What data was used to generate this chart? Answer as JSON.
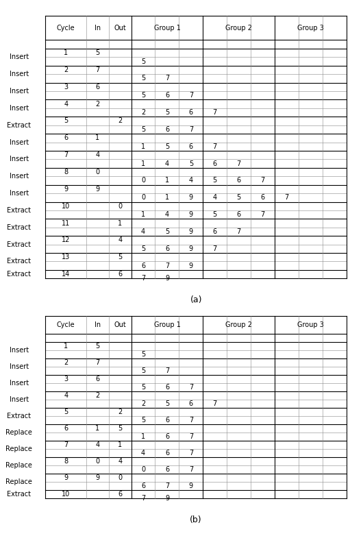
{
  "table_a": {
    "title": "(a)",
    "left_labels": [
      "Insert",
      "Insert",
      "Insert",
      "Insert",
      "Extract",
      "Insert",
      "Insert",
      "Insert",
      "Insert",
      "Extract",
      "Extract",
      "Extract",
      "Extract",
      "Extract"
    ],
    "cycle": [
      "1",
      "2",
      "3",
      "4",
      "5",
      "6",
      "7",
      "8",
      "9",
      "10",
      "11",
      "12",
      "13",
      "14"
    ],
    "in_val": [
      "5",
      "7",
      "6",
      "2",
      "",
      "1",
      "4",
      "0",
      "9",
      "",
      "",
      "",
      "",
      ""
    ],
    "out_val": [
      "",
      "",
      "",
      "",
      "2",
      "",
      "",
      "",
      "",
      "0",
      "1",
      "4",
      "5",
      "6"
    ],
    "state_rows": [
      [
        "5",
        "",
        "",
        "",
        "",
        "",
        "",
        "",
        ""
      ],
      [
        "5",
        "7",
        "",
        "",
        "",
        "",
        "",
        "",
        ""
      ],
      [
        "5",
        "6",
        "7",
        "",
        "",
        "",
        "",
        "",
        ""
      ],
      [
        "2",
        "5",
        "6",
        "7",
        "",
        "",
        "",
        "",
        ""
      ],
      [
        "5",
        "6",
        "7",
        "",
        "",
        "",
        "",
        "",
        ""
      ],
      [
        "1",
        "5",
        "6",
        "7",
        "",
        "",
        "",
        "",
        ""
      ],
      [
        "1",
        "4",
        "5",
        "6",
        "7",
        "",
        "",
        "",
        ""
      ],
      [
        "0",
        "1",
        "4",
        "5",
        "6",
        "7",
        "",
        "",
        ""
      ],
      [
        "0",
        "1",
        "9",
        "4",
        "5",
        "6",
        "7",
        "",
        ""
      ],
      [
        "1",
        "4",
        "9",
        "5",
        "6",
        "7",
        "",
        "",
        ""
      ],
      [
        "4",
        "5",
        "9",
        "6",
        "7",
        "",
        "",
        "",
        ""
      ],
      [
        "5",
        "6",
        "9",
        "7",
        "",
        "",
        "",
        "",
        ""
      ],
      [
        "6",
        "7",
        "9",
        "",
        "",
        "",
        "",
        "",
        ""
      ],
      [
        "7",
        "9",
        "",
        "",
        "",
        "",
        "",
        "",
        ""
      ]
    ]
  },
  "table_b": {
    "title": "(b)",
    "left_labels": [
      "Insert",
      "Insert",
      "Insert",
      "Insert",
      "Extract",
      "Replace",
      "Replace",
      "Replace",
      "Replace",
      "Extract"
    ],
    "cycle": [
      "1",
      "2",
      "3",
      "4",
      "5",
      "6",
      "7",
      "8",
      "9",
      "10"
    ],
    "in_val": [
      "5",
      "7",
      "6",
      "2",
      "",
      "1",
      "4",
      "0",
      "9",
      ""
    ],
    "out_val": [
      "",
      "",
      "",
      "",
      "2",
      "5",
      "1",
      "4",
      "0",
      "6"
    ],
    "state_rows": [
      [
        "5",
        "",
        "",
        "",
        "",
        "",
        "",
        "",
        ""
      ],
      [
        "5",
        "7",
        "",
        "",
        "",
        "",
        "",
        "",
        ""
      ],
      [
        "5",
        "6",
        "7",
        "",
        "",
        "",
        "",
        "",
        ""
      ],
      [
        "2",
        "5",
        "6",
        "7",
        "",
        "",
        "",
        "",
        ""
      ],
      [
        "5",
        "6",
        "7",
        "",
        "",
        "",
        "",
        "",
        ""
      ],
      [
        "1",
        "6",
        "7",
        "",
        "",
        "",
        "",
        "",
        ""
      ],
      [
        "4",
        "6",
        "7",
        "",
        "",
        "",
        "",
        "",
        ""
      ],
      [
        "0",
        "6",
        "7",
        "",
        "",
        "",
        "",
        "",
        ""
      ],
      [
        "6",
        "7",
        "9",
        "",
        "",
        "",
        "",
        "",
        ""
      ],
      [
        "7",
        "9",
        "",
        "",
        "",
        "",
        "",
        "",
        ""
      ]
    ]
  },
  "fontsize": 7,
  "label_fontsize": 7,
  "title_fontsize": 9
}
